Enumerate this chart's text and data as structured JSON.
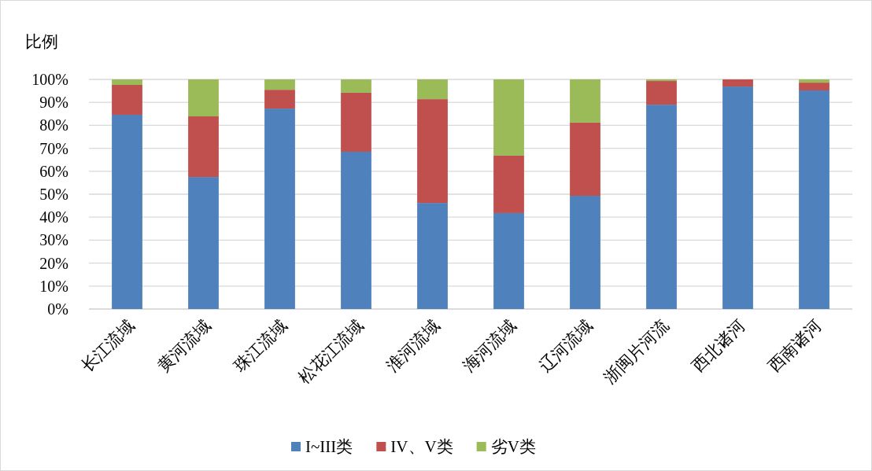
{
  "chart_data": {
    "type": "bar",
    "stacked": true,
    "ylabel": "比例",
    "categories": [
      "长江流域",
      "黄河流域",
      "珠江流域",
      "松花江流域",
      "淮河流域",
      "海河流域",
      "辽河流域",
      "浙闽片河流",
      "西北诸河",
      "西南诸河"
    ],
    "series": [
      {
        "name": "I~III类",
        "color": "#4f81bd",
        "values": [
          84.6,
          57.5,
          87.3,
          68.5,
          46.2,
          41.8,
          49.3,
          89.0,
          96.9,
          95.2
        ]
      },
      {
        "name": "IV、V类",
        "color": "#c0504d",
        "values": [
          13.0,
          26.4,
          8.2,
          25.7,
          45.2,
          25.0,
          31.9,
          10.3,
          3.1,
          3.4
        ]
      },
      {
        "name": "劣V类",
        "color": "#9bbb59",
        "values": [
          2.4,
          16.1,
          4.5,
          5.8,
          8.6,
          33.2,
          18.8,
          0.7,
          0,
          1.4
        ]
      }
    ],
    "ylim": [
      0,
      100
    ],
    "yticks": [
      {
        "value": 0,
        "label": "0%"
      },
      {
        "value": 10,
        "label": "10%"
      },
      {
        "value": 20,
        "label": "20%"
      },
      {
        "value": 30,
        "label": "30%"
      },
      {
        "value": 40,
        "label": "40%"
      },
      {
        "value": 50,
        "label": "50%"
      },
      {
        "value": 60,
        "label": "60%"
      },
      {
        "value": 70,
        "label": "70%"
      },
      {
        "value": 80,
        "label": "80%"
      },
      {
        "value": 90,
        "label": "90%"
      },
      {
        "value": 100,
        "label": "100%"
      }
    ],
    "grid": "y",
    "legend": "bottom"
  }
}
